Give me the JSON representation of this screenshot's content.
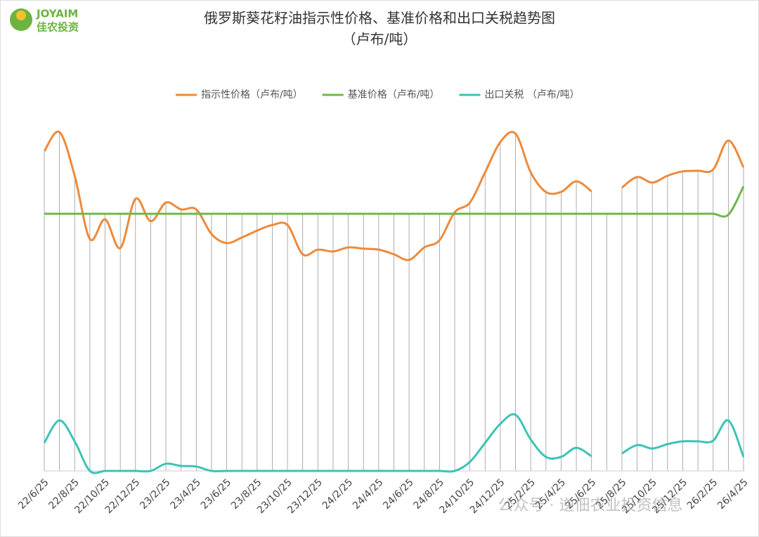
{
  "logo": {
    "name": "JOYAIM",
    "subtitle": "佳农投资"
  },
  "watermark": "公众号 · 逆佃农业投资信息",
  "chart_data": {
    "type": "line",
    "title": "俄罗斯葵花籽油指示性价格、基准价格和出口关税趋势图",
    "subtitle": "（卢布/吨）",
    "categories": [
      "22/6/25",
      null,
      "22/8/25",
      null,
      "22/10/25",
      null,
      "22/12/25",
      null,
      "23/2/25",
      null,
      "23/4/25",
      null,
      "23/6/25",
      null,
      "23/8/25",
      null,
      "23/10/25",
      null,
      "23/12/25",
      null,
      "24/2/25",
      null,
      "24/4/25",
      null,
      "24/6/25",
      null,
      "24/8/25",
      null,
      "24/10/25",
      null,
      "24/12/25",
      null,
      "25/2/25",
      null,
      "25/4/25",
      null,
      "25/6/25",
      null,
      "25/8/25",
      null,
      "25/10/25",
      null,
      "25/12/25",
      null,
      "26/2/25",
      null,
      "26/4/25"
    ],
    "ylim": [
      0,
      115000
    ],
    "series": [
      {
        "name": "指示性价格（卢布/吨）",
        "color": "#ee8a3a",
        "values": [
          102600,
          108700,
          94700,
          74400,
          80700,
          71500,
          87300,
          80100,
          86100,
          83900,
          83900,
          76000,
          73100,
          74900,
          77100,
          78900,
          78900,
          69500,
          71000,
          70400,
          71700,
          71300,
          71000,
          69500,
          67700,
          71700,
          74000,
          83000,
          86100,
          95800,
          105500,
          108200,
          95800,
          89500,
          89500,
          92900,
          89700,
          null,
          90900,
          94300,
          92500,
          94700,
          96100,
          96300,
          96700,
          106000,
          97400
        ]
      },
      {
        "name": "基准价格（卢布/吨）",
        "color": "#70b84a",
        "values": [
          82500,
          82500,
          82500,
          82500,
          82500,
          82500,
          82500,
          82500,
          82500,
          82500,
          82500,
          82500,
          82500,
          82500,
          82500,
          82500,
          82500,
          82500,
          82500,
          82500,
          82500,
          82500,
          82500,
          82500,
          82500,
          82500,
          82500,
          82500,
          82500,
          82500,
          82500,
          82500,
          82500,
          82500,
          82500,
          82500,
          82500,
          82500,
          82500,
          82500,
          82500,
          82500,
          82500,
          82500,
          82500,
          82200,
          91300
        ]
      },
      {
        "name": "出口关税 （卢布/吨）",
        "color": "#3cc3b5",
        "values": [
          9000,
          16200,
          9500,
          0,
          0,
          0,
          0,
          0,
          2300,
          1600,
          1400,
          0,
          0,
          0,
          0,
          0,
          0,
          0,
          0,
          0,
          0,
          0,
          0,
          0,
          0,
          0,
          0,
          0,
          2900,
          9000,
          15100,
          18000,
          10100,
          4500,
          4500,
          7400,
          4700,
          null,
          5600,
          8300,
          7200,
          8600,
          9500,
          9500,
          9700,
          16200,
          4500
        ]
      }
    ],
    "drop_lines": true
  }
}
